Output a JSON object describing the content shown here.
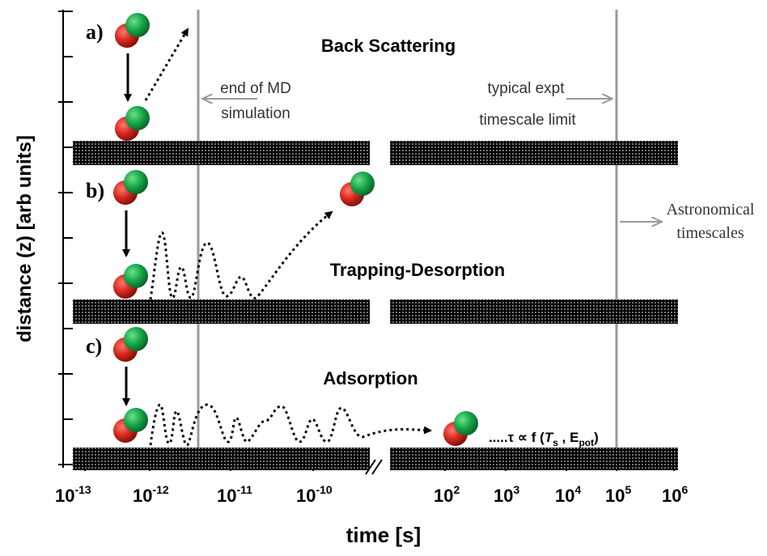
{
  "axes": {
    "y_label": "distance (z) [arb units]",
    "x_label": "time [s]",
    "x_ticks_left": [
      {
        "base": "10",
        "exp": "-13"
      },
      {
        "base": "10",
        "exp": "-12"
      },
      {
        "base": "10",
        "exp": "-11"
      },
      {
        "base": "10",
        "exp": "-10"
      }
    ],
    "x_ticks_right": [
      {
        "base": "10",
        "exp": "2"
      },
      {
        "base": "10",
        "exp": "3"
      },
      {
        "base": "10",
        "exp": "4"
      },
      {
        "base": "10",
        "exp": "5"
      },
      {
        "base": "10",
        "exp": "6"
      }
    ]
  },
  "panels": {
    "a": {
      "letter": "a)",
      "title": "Back Scattering"
    },
    "b": {
      "letter": "b)",
      "title": "Trapping-Desorption"
    },
    "c": {
      "letter": "c)",
      "title": "Adsorption"
    }
  },
  "annotations": {
    "md_end": {
      "line1": "end of MD",
      "line2": "simulation"
    },
    "expt_limit": {
      "line1": "typical expt",
      "line2": "timescale limit"
    },
    "astro": {
      "line1": "Astronomical",
      "line2": "timescales"
    },
    "residence": {
      "prefix": ".....τ ∝ f (",
      "T": "T",
      "T_sub": "s",
      "sep": " , E",
      "E_sub": "pot",
      "suffix": ")"
    }
  },
  "colors": {
    "molecule_red": "#d8281f",
    "molecule_green": "#16a34a",
    "guide_line": "#9a9a9a",
    "surface": "#000000"
  }
}
